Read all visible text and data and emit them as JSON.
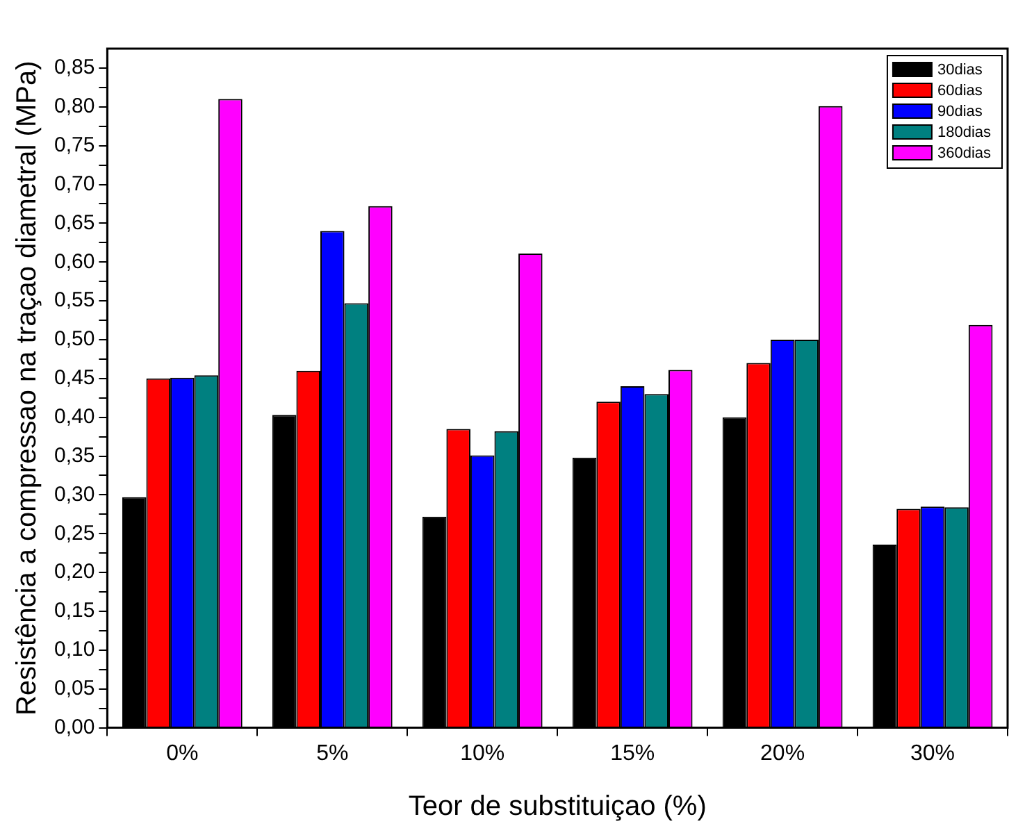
{
  "chart_data": {
    "type": "bar",
    "xlabel": "Teor de substituiçao (%)",
    "ylabel": "Resistência a compressao na traçao diametral (MPa)",
    "categories": [
      "0%",
      "5%",
      "10%",
      "15%",
      "20%",
      "30%"
    ],
    "series": [
      {
        "name": "30dias",
        "color": "#000000",
        "values": [
          0.297,
          0.403,
          0.272,
          0.348,
          0.4,
          0.236
        ]
      },
      {
        "name": "60dias",
        "color": "#ff0000",
        "values": [
          0.45,
          0.46,
          0.385,
          0.42,
          0.47,
          0.282
        ]
      },
      {
        "name": "90dias",
        "color": "#0000ff",
        "values": [
          0.451,
          0.64,
          0.351,
          0.44,
          0.5,
          0.285
        ]
      },
      {
        "name": "180dias",
        "color": "#008080",
        "values": [
          0.454,
          0.547,
          0.382,
          0.43,
          0.5,
          0.284
        ]
      },
      {
        "name": "360dias",
        "color": "#ff00ff",
        "values": [
          0.81,
          0.672,
          0.611,
          0.461,
          0.801,
          0.519
        ]
      }
    ],
    "ylim": [
      0,
      0.875
    ],
    "yticks": [
      {
        "value": 0,
        "label": "0,00"
      },
      {
        "value": 0.025,
        "label": null
      },
      {
        "value": 0.05,
        "label": "0,05"
      },
      {
        "value": 0.075,
        "label": null
      },
      {
        "value": 0.1,
        "label": "0,10"
      },
      {
        "value": 0.125,
        "label": null
      },
      {
        "value": 0.15,
        "label": "0,15"
      },
      {
        "value": 0.175,
        "label": null
      },
      {
        "value": 0.2,
        "label": "0,20"
      },
      {
        "value": 0.225,
        "label": null
      },
      {
        "value": 0.25,
        "label": "0,25"
      },
      {
        "value": 0.275,
        "label": null
      },
      {
        "value": 0.3,
        "label": "0,30"
      },
      {
        "value": 0.325,
        "label": null
      },
      {
        "value": 0.35,
        "label": "0,35"
      },
      {
        "value": 0.375,
        "label": null
      },
      {
        "value": 0.4,
        "label": "0,40"
      },
      {
        "value": 0.425,
        "label": null
      },
      {
        "value": 0.45,
        "label": "0,45"
      },
      {
        "value": 0.475,
        "label": null
      },
      {
        "value": 0.5,
        "label": "0,50"
      },
      {
        "value": 0.525,
        "label": null
      },
      {
        "value": 0.55,
        "label": "0,55"
      },
      {
        "value": 0.575,
        "label": null
      },
      {
        "value": 0.6,
        "label": "0,60"
      },
      {
        "value": 0.625,
        "label": null
      },
      {
        "value": 0.65,
        "label": "0,65"
      },
      {
        "value": 0.675,
        "label": null
      },
      {
        "value": 0.7,
        "label": "0,70"
      },
      {
        "value": 0.725,
        "label": null
      },
      {
        "value": 0.75,
        "label": "0,75"
      },
      {
        "value": 0.775,
        "label": null
      },
      {
        "value": 0.8,
        "label": "0,80"
      },
      {
        "value": 0.825,
        "label": null
      },
      {
        "value": 0.85,
        "label": "0,85"
      }
    ],
    "grid": false,
    "legend": "top right"
  }
}
